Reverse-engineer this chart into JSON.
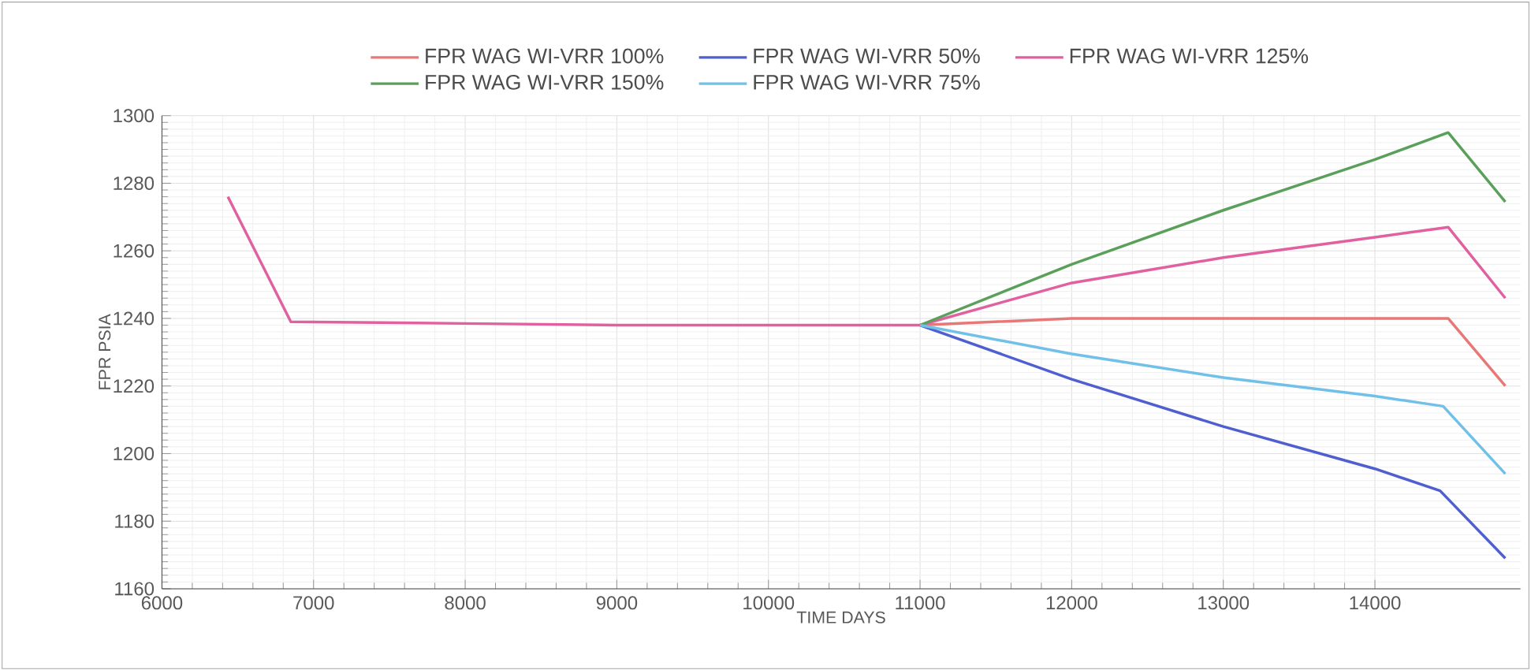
{
  "chart_data": {
    "type": "line",
    "xlabel": "TIME   DAYS",
    "ylabel": "FPR   PSIA",
    "xlim": [
      6000,
      14960
    ],
    "ylim": [
      1160,
      1300
    ],
    "xticks": [
      6000,
      7000,
      8000,
      9000,
      10000,
      11000,
      12000,
      13000,
      14000
    ],
    "yticks": [
      1160,
      1180,
      1200,
      1220,
      1240,
      1260,
      1280,
      1300
    ],
    "grid": true,
    "legend": "top",
    "marker": "none",
    "line_style": "solid",
    "series": [
      {
        "name": "FPR WAG WI-VRR 100%",
        "color": "#e87878",
        "x": [
          11000,
          12000,
          13000,
          14000,
          14483,
          14860
        ],
        "values": [
          1238,
          1240,
          1240,
          1240,
          1240,
          1220
        ]
      },
      {
        "name": "FPR WAG WI-VRR 50%",
        "color": "#4f5fd0",
        "x": [
          11000,
          12000,
          13000,
          14000,
          14430,
          14860
        ],
        "values": [
          1238,
          1222,
          1208,
          1195.5,
          1189,
          1169
        ]
      },
      {
        "name": "FPR WAG WI-VRR 125%",
        "color": "#e060a0",
        "x": [
          6435,
          6850,
          8000,
          9000,
          10000,
          11000,
          12000,
          13000,
          14000,
          14483,
          14860
        ],
        "values": [
          1276,
          1239,
          1238.5,
          1238,
          1238,
          1238,
          1250.5,
          1258,
          1264,
          1267,
          1246
        ]
      },
      {
        "name": "FPR WAG WI-VRR 150%",
        "color": "#5aa05a",
        "x": [
          11000,
          12000,
          13000,
          14000,
          14483,
          14860
        ],
        "values": [
          1238,
          1256,
          1272,
          1287,
          1295,
          1274.5
        ]
      },
      {
        "name": "FPR WAG WI-VRR 75%",
        "color": "#70c0e8",
        "x": [
          11000,
          12000,
          13000,
          14000,
          14450,
          14860
        ],
        "values": [
          1238,
          1229.5,
          1222.5,
          1217,
          1214,
          1194
        ]
      }
    ]
  }
}
